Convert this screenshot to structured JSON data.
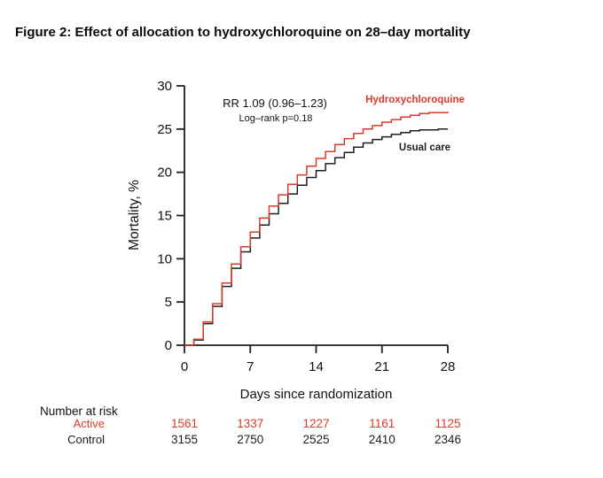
{
  "figure": {
    "title": "Figure 2: Effect of allocation to hydroxychloroquine on 28–day mortality"
  },
  "chart_data": {
    "type": "line",
    "subtype": "kaplan-meier-step",
    "xlabel": "Days since randomization",
    "ylabel": "Mortality, %",
    "xlim": [
      0,
      28
    ],
    "ylim": [
      0,
      30
    ],
    "xticks": [
      0,
      7,
      14,
      21,
      28
    ],
    "yticks": [
      0,
      5,
      10,
      15,
      20,
      25,
      30
    ],
    "grid": false,
    "annotation": {
      "line1": "RR 1.09 (0.96–1.23)",
      "line2": "Log–rank p=0.18"
    },
    "x": [
      0,
      1,
      2,
      3,
      4,
      5,
      6,
      7,
      8,
      9,
      10,
      11,
      12,
      13,
      14,
      15,
      16,
      17,
      18,
      19,
      20,
      21,
      22,
      23,
      24,
      25,
      26,
      27,
      28
    ],
    "series": [
      {
        "name": "Hydroxychloroquine",
        "color": "#d93a2b",
        "values": [
          0,
          0.7,
          2.7,
          4.8,
          7.2,
          9.4,
          11.4,
          13.1,
          14.7,
          16.1,
          17.4,
          18.6,
          19.7,
          20.7,
          21.6,
          22.4,
          23.2,
          23.9,
          24.5,
          25.0,
          25.4,
          25.8,
          26.1,
          26.4,
          26.6,
          26.8,
          26.9,
          26.9,
          27.0
        ]
      },
      {
        "name": "Usual care",
        "color": "#1f1f1f",
        "values": [
          0,
          0.6,
          2.5,
          4.5,
          6.8,
          8.9,
          10.8,
          12.4,
          13.9,
          15.2,
          16.4,
          17.5,
          18.5,
          19.4,
          20.2,
          21.0,
          21.7,
          22.3,
          22.9,
          23.4,
          23.8,
          24.1,
          24.4,
          24.6,
          24.8,
          24.9,
          24.9,
          25.0,
          25.0
        ]
      }
    ],
    "legend_position": "labels-on-plot"
  },
  "risk_table": {
    "header": "Number at risk",
    "columns": [
      "0",
      "7",
      "14",
      "21",
      "28"
    ],
    "rows": [
      {
        "label": "Active",
        "color": "#d93a2b",
        "values": [
          "1561",
          "1337",
          "1227",
          "1161",
          "1125"
        ]
      },
      {
        "label": "Control",
        "color": "#1c1c1c",
        "values": [
          "3155",
          "2750",
          "2525",
          "2410",
          "2346"
        ]
      }
    ]
  },
  "colors": {
    "active_red": "#d93a2b",
    "control_black": "#1f1f1f",
    "axis": "#1f1f1f",
    "background": "#ffffff"
  }
}
